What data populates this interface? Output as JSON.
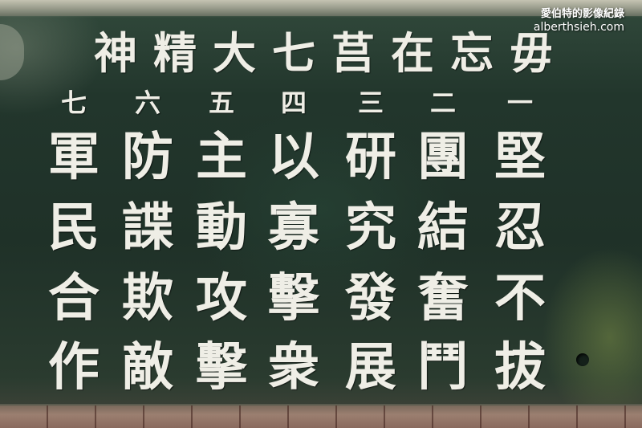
{
  "watermark": {
    "title": "愛伯特的影像紀錄",
    "url": "alberthsieh.com"
  },
  "inscription": {
    "title": "毋忘在莒七大精神",
    "columns": [
      {
        "number": "一",
        "text": "堅忍不拔"
      },
      {
        "number": "二",
        "text": "團結奮鬥"
      },
      {
        "number": "三",
        "text": "研究發展"
      },
      {
        "number": "四",
        "text": "以寡擊衆"
      },
      {
        "number": "五",
        "text": "主動攻擊"
      },
      {
        "number": "六",
        "text": "防諜欺敵"
      },
      {
        "number": "七",
        "text": "軍民合作"
      }
    ]
  }
}
